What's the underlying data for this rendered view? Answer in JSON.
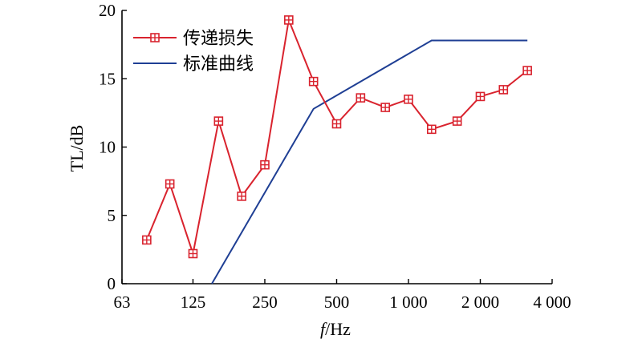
{
  "chart_data": {
    "type": "line",
    "xlabel_italic": "f",
    "xlabel_unit": "/Hz",
    "ylabel": "TL/dB",
    "x_scale": "log",
    "xlim": [
      63,
      4000
    ],
    "ylim": [
      0,
      20
    ],
    "x_ticks": [
      63,
      125,
      250,
      500,
      1000,
      2000,
      4000
    ],
    "x_tick_labels": [
      "63",
      "125",
      "250",
      "500",
      "1 000",
      "2 000",
      "4 000"
    ],
    "y_ticks": [
      0,
      5,
      10,
      15,
      20
    ],
    "y_tick_labels": [
      "0",
      "5",
      "10",
      "15",
      "20"
    ],
    "legend_position": "top-left",
    "series": [
      {
        "name": "传递损失",
        "color": "#d9232e",
        "marker": "boxed-plus",
        "x": [
          80,
          100,
          125,
          160,
          200,
          250,
          315,
          400,
          500,
          630,
          800,
          1000,
          1250,
          1600,
          2000,
          2500,
          3150
        ],
        "y": [
          3.2,
          7.3,
          2.2,
          11.9,
          6.4,
          8.7,
          19.3,
          14.8,
          11.7,
          13.6,
          12.9,
          13.5,
          11.3,
          11.9,
          13.7,
          14.2,
          15.6
        ]
      },
      {
        "name": "标准曲线",
        "color": "#1f3f94",
        "marker": "none",
        "x": [
          150,
          400,
          1250,
          3150
        ],
        "y": [
          0,
          12.8,
          17.8,
          17.8
        ]
      }
    ]
  }
}
